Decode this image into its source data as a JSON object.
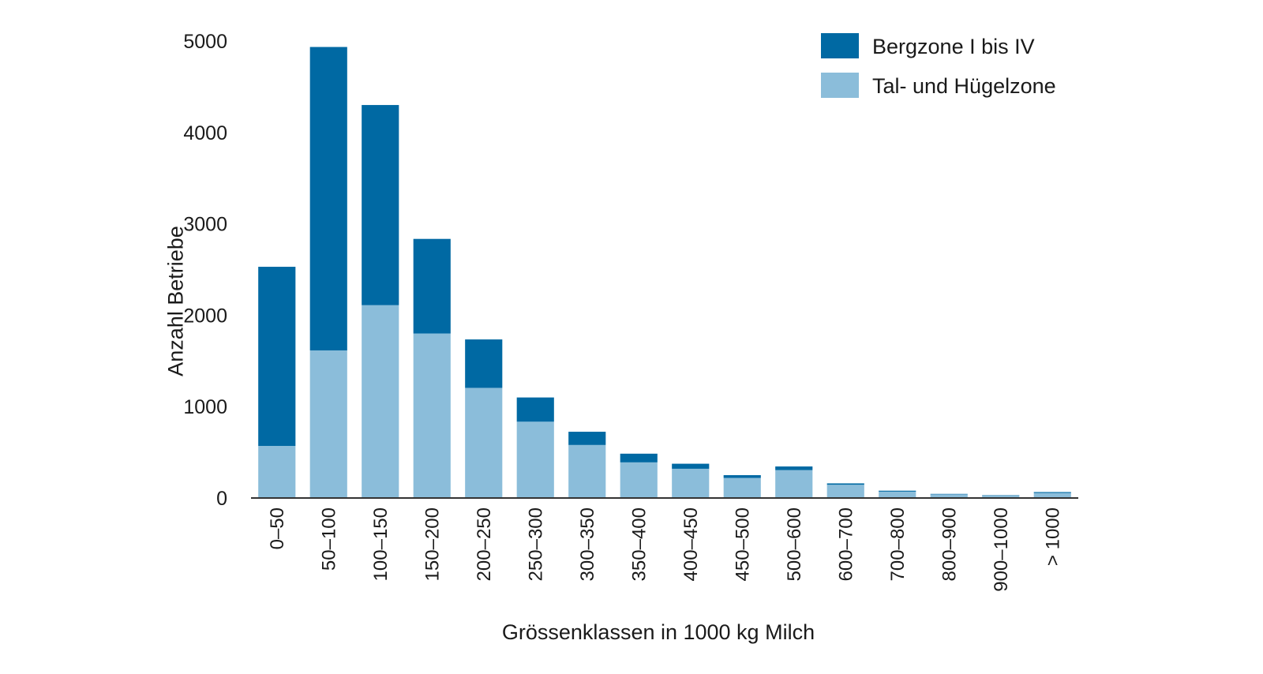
{
  "chart_data": {
    "type": "bar",
    "stacked": true,
    "categories": [
      "0–50",
      "50–100",
      "100–150",
      "150–200",
      "200–250",
      "250–300",
      "300–350",
      "350–400",
      "400–450",
      "450–500",
      "500–600",
      "600–700",
      "700–800",
      "800–900",
      "900–1000",
      "> 1000"
    ],
    "series": [
      {
        "name": "Tal- und Hügelzone",
        "color": "#8bbdda",
        "values": [
          570,
          1615,
          2110,
          1800,
          1205,
          835,
          580,
          390,
          320,
          220,
          305,
          145,
          70,
          40,
          25,
          55
        ]
      },
      {
        "name": "Bergzone I bis IV",
        "color": "#0069a3",
        "values": [
          1960,
          3320,
          2190,
          1035,
          530,
          265,
          145,
          95,
          55,
          30,
          40,
          15,
          10,
          5,
          5,
          10
        ]
      }
    ],
    "legend_order": [
      "Bergzone I bis IV",
      "Tal- und Hügelzone"
    ],
    "xlabel": "Grössenklassen in 1000 kg Milch",
    "ylabel": "Anzahl Betriebe",
    "yticks": [
      "0",
      "1000",
      "2000",
      "3000",
      "4000",
      "5000"
    ],
    "ylim": [
      0,
      5000
    ],
    "grid": false,
    "legend_position": "top-right"
  }
}
